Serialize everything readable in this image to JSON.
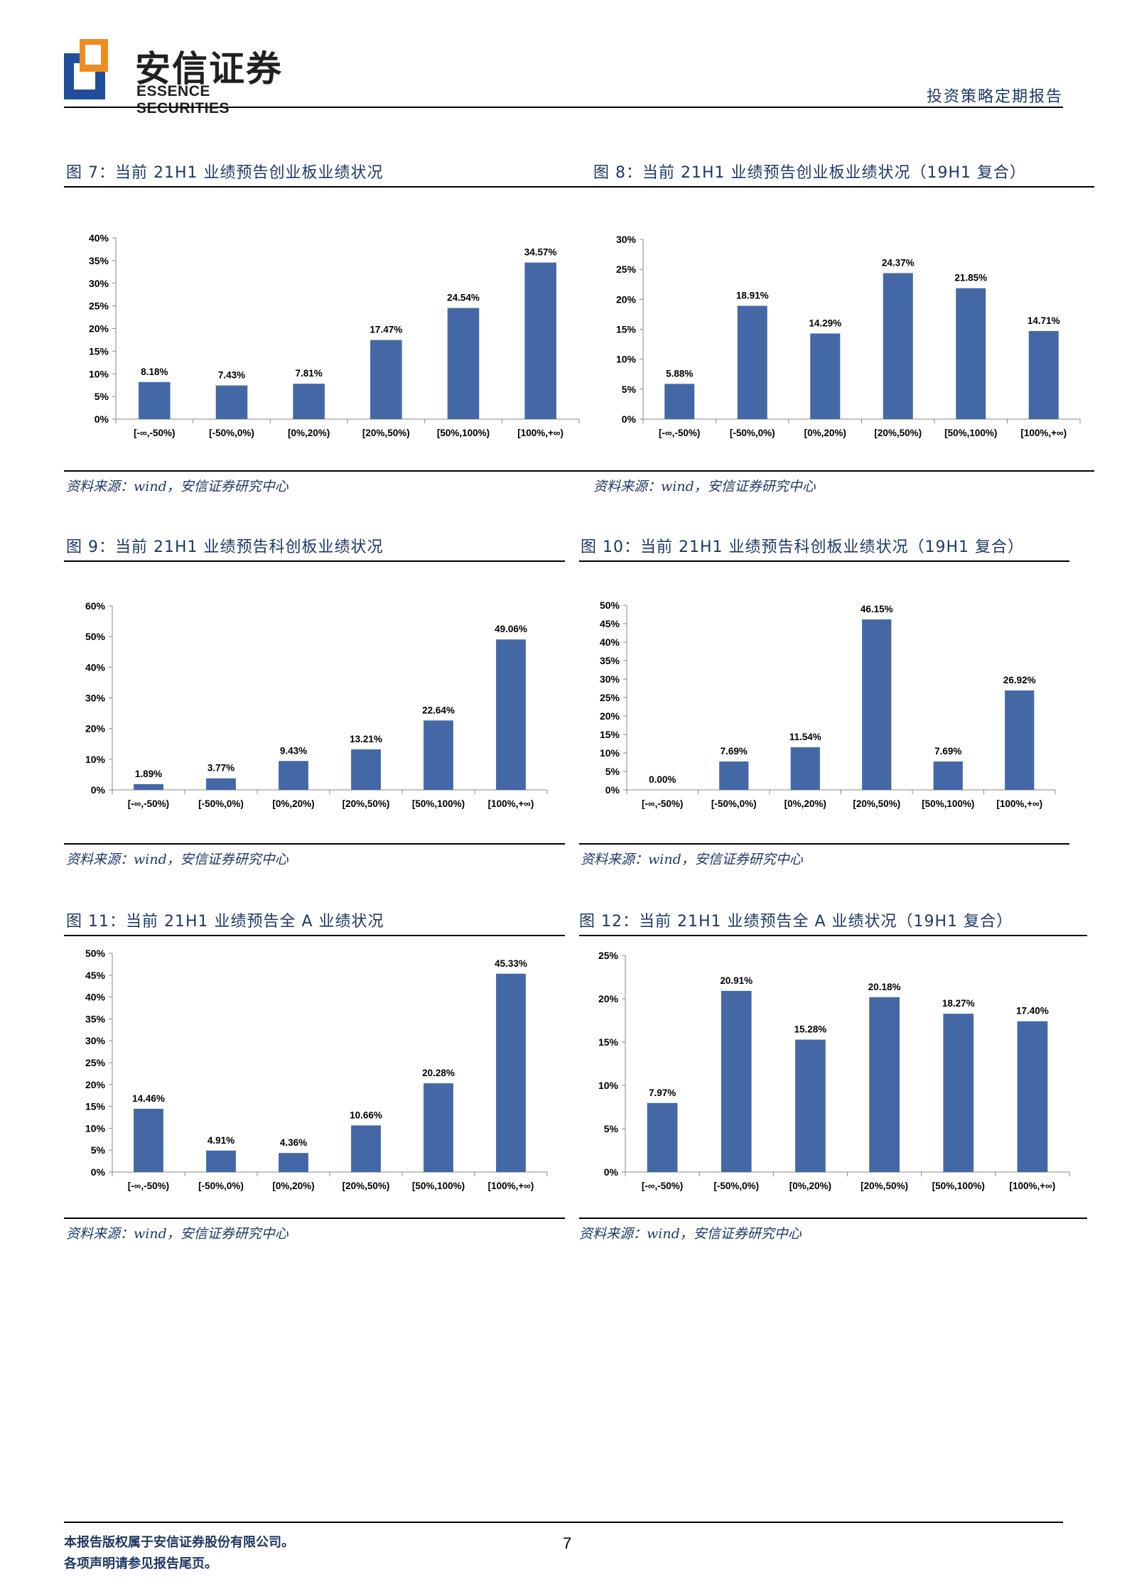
{
  "header": {
    "logo_cn": "安信证券",
    "logo_en": "ESSENCE SECURITIES",
    "doc_type": "投资策略定期报告"
  },
  "footer": {
    "line1": "本报告版权属于安信证券股份有限公司。",
    "line2": "各项声明请参见报告尾页。",
    "page_number": "7"
  },
  "colors": {
    "bar": "#4468a6",
    "title": "#1f3864",
    "source": "#1f3864"
  },
  "chart_data": [
    {
      "type": "bar",
      "title": "图 7：当前 21H1 业绩预告创业板业绩状况",
      "source": "资料来源：wind，安信证券研究中心",
      "categories": [
        "[-∞,-50%)",
        "[-50%,0%)",
        "[0%,20%)",
        "[20%,50%)",
        "[50%,100%)",
        "[100%,+∞)"
      ],
      "values": [
        8.18,
        7.43,
        7.81,
        17.47,
        24.54,
        34.57
      ],
      "value_labels": [
        "8.18%",
        "7.43%",
        "7.81%",
        "17.47%",
        "24.54%",
        "34.57%"
      ],
      "yticks": [
        "0%",
        "5%",
        "10%",
        "15%",
        "20%",
        "25%",
        "30%",
        "35%",
        "40%"
      ],
      "ylim": [
        0,
        40
      ]
    },
    {
      "type": "bar",
      "title": "图 8：当前 21H1 业绩预告创业板业绩状况（19H1 复合）",
      "source": "资料来源：wind，安信证券研究中心",
      "categories": [
        "[-∞,-50%)",
        "[-50%,0%)",
        "[0%,20%)",
        "[20%,50%)",
        "[50%,100%)",
        "[100%,+∞)"
      ],
      "values": [
        5.88,
        18.91,
        14.29,
        24.37,
        21.85,
        14.71
      ],
      "value_labels": [
        "5.88%",
        "18.91%",
        "14.29%",
        "24.37%",
        "21.85%",
        "14.71%"
      ],
      "yticks": [
        "0%",
        "5%",
        "10%",
        "15%",
        "20%",
        "25%",
        "30%"
      ],
      "ylim": [
        0,
        30
      ]
    },
    {
      "type": "bar",
      "title": "图 9：当前 21H1 业绩预告科创板业绩状况",
      "source": "资料来源：wind，安信证券研究中心",
      "categories": [
        "[-∞,-50%)",
        "[-50%,0%)",
        "[0%,20%)",
        "[20%,50%)",
        "[50%,100%)",
        "[100%,+∞)"
      ],
      "values": [
        1.89,
        3.77,
        9.43,
        13.21,
        22.64,
        49.06
      ],
      "value_labels": [
        "1.89%",
        "3.77%",
        "9.43%",
        "13.21%",
        "22.64%",
        "49.06%"
      ],
      "yticks": [
        "0%",
        "10%",
        "20%",
        "30%",
        "40%",
        "50%",
        "60%"
      ],
      "ylim": [
        0,
        60
      ]
    },
    {
      "type": "bar",
      "title": "图 10：当前 21H1 业绩预告科创板业绩状况（19H1 复合）",
      "source": "资料来源：wind，安信证券研究中心",
      "categories": [
        "[-∞,-50%)",
        "[-50%,0%)",
        "[0%,20%)",
        "[20%,50%)",
        "[50%,100%)",
        "[100%,+∞)"
      ],
      "values": [
        0.0,
        7.69,
        11.54,
        46.15,
        7.69,
        26.92
      ],
      "value_labels": [
        "0.00%",
        "7.69%",
        "11.54%",
        "46.15%",
        "7.69%",
        "26.92%"
      ],
      "yticks": [
        "0%",
        "5%",
        "10%",
        "15%",
        "20%",
        "25%",
        "30%",
        "35%",
        "40%",
        "45%",
        "50%"
      ],
      "ylim": [
        0,
        50
      ]
    },
    {
      "type": "bar",
      "title": "图 11：当前 21H1 业绩预告全 A 业绩状况",
      "source": "资料来源：wind，安信证券研究中心",
      "categories": [
        "[-∞,-50%)",
        "[-50%,0%)",
        "[0%,20%)",
        "[20%,50%)",
        "[50%,100%)",
        "[100%,+∞)"
      ],
      "values": [
        14.46,
        4.91,
        4.36,
        10.66,
        20.28,
        45.33
      ],
      "value_labels": [
        "14.46%",
        "4.91%",
        "4.36%",
        "10.66%",
        "20.28%",
        "45.33%"
      ],
      "yticks": [
        "0%",
        "5%",
        "10%",
        "15%",
        "20%",
        "25%",
        "30%",
        "35%",
        "40%",
        "45%",
        "50%"
      ],
      "ylim": [
        0,
        50
      ]
    },
    {
      "type": "bar",
      "title": "图 12：当前 21H1 业绩预告全 A 业绩状况（19H1 复合）",
      "source": "资料来源：wind，安信证券研究中心",
      "categories": [
        "[-∞,-50%)",
        "[-50%,0%)",
        "[0%,20%)",
        "[20%,50%)",
        "[50%,100%)",
        "[100%,+∞)"
      ],
      "values": [
        7.97,
        20.91,
        15.28,
        20.18,
        18.27,
        17.4
      ],
      "value_labels": [
        "7.97%",
        "20.91%",
        "15.28%",
        "20.18%",
        "18.27%",
        "17.40%"
      ],
      "yticks": [
        "0%",
        "5%",
        "10%",
        "15%",
        "20%",
        "25%"
      ],
      "ylim": [
        0,
        25
      ]
    }
  ]
}
